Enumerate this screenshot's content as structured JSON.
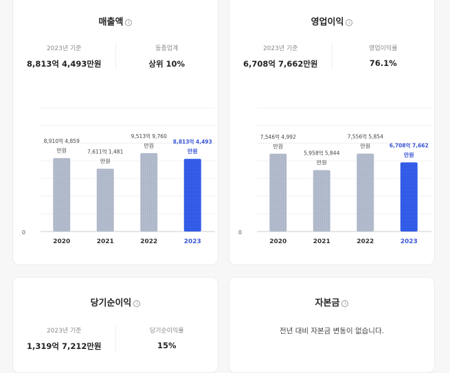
{
  "cards": {
    "revenue": {
      "title": "매출액",
      "stat1_label": "2023년 기준",
      "stat1_value": "8,813억 4,493만원",
      "stat2_label": "동종업계",
      "stat2_value": "상위 10%"
    },
    "operating": {
      "title": "영업이익",
      "stat1_label": "2023년 기준",
      "stat1_value": "6,708억 7,662만원",
      "stat2_label": "영업이익률",
      "stat2_value": "76.1%"
    },
    "net": {
      "title": "당기순이익",
      "stat1_label": "2023년 기준",
      "stat1_value": "1,319억 7,212만원",
      "stat2_label": "당기순이익률",
      "stat2_value": "15%"
    },
    "capital": {
      "title": "자본금",
      "message": "전년 대비 자본금 변동이 없습니다."
    }
  },
  "colors": {
    "highlight": "#2b55e0",
    "bar": "#b3bccd",
    "highlight_text": "#3a55d6"
  },
  "chart_data": [
    {
      "type": "bar",
      "categories": [
        "2020",
        "2021",
        "2022",
        "2023"
      ],
      "values": [
        8910.4859,
        7611.1481,
        9513.976,
        8813.4493
      ],
      "labels": [
        [
          "8,910억 4,859",
          "만원"
        ],
        [
          "7,611억 1,481",
          "만원"
        ],
        [
          "9,513억 9,760",
          "만원"
        ],
        [
          "8,813억 4,493",
          "만원"
        ]
      ],
      "highlight": "2023",
      "ytick": "0",
      "ylim": [
        0,
        15000
      ],
      "unit": "억원",
      "grid": true
    },
    {
      "type": "bar",
      "categories": [
        "2020",
        "2021",
        "2022",
        "2023"
      ],
      "values": [
        7546.4992,
        5958.5844,
        7556.5854,
        6708.7662
      ],
      "labels": [
        [
          "7,546억 4,992",
          "만원"
        ],
        [
          "5,958억 5,844",
          "만원"
        ],
        [
          "7,556억 5,854",
          "만원"
        ],
        [
          "6,708억 7,662",
          "만원"
        ]
      ],
      "highlight": "2023",
      "ytick": "0",
      "ylim": [
        0,
        12000
      ],
      "unit": "억원",
      "grid": true
    }
  ]
}
